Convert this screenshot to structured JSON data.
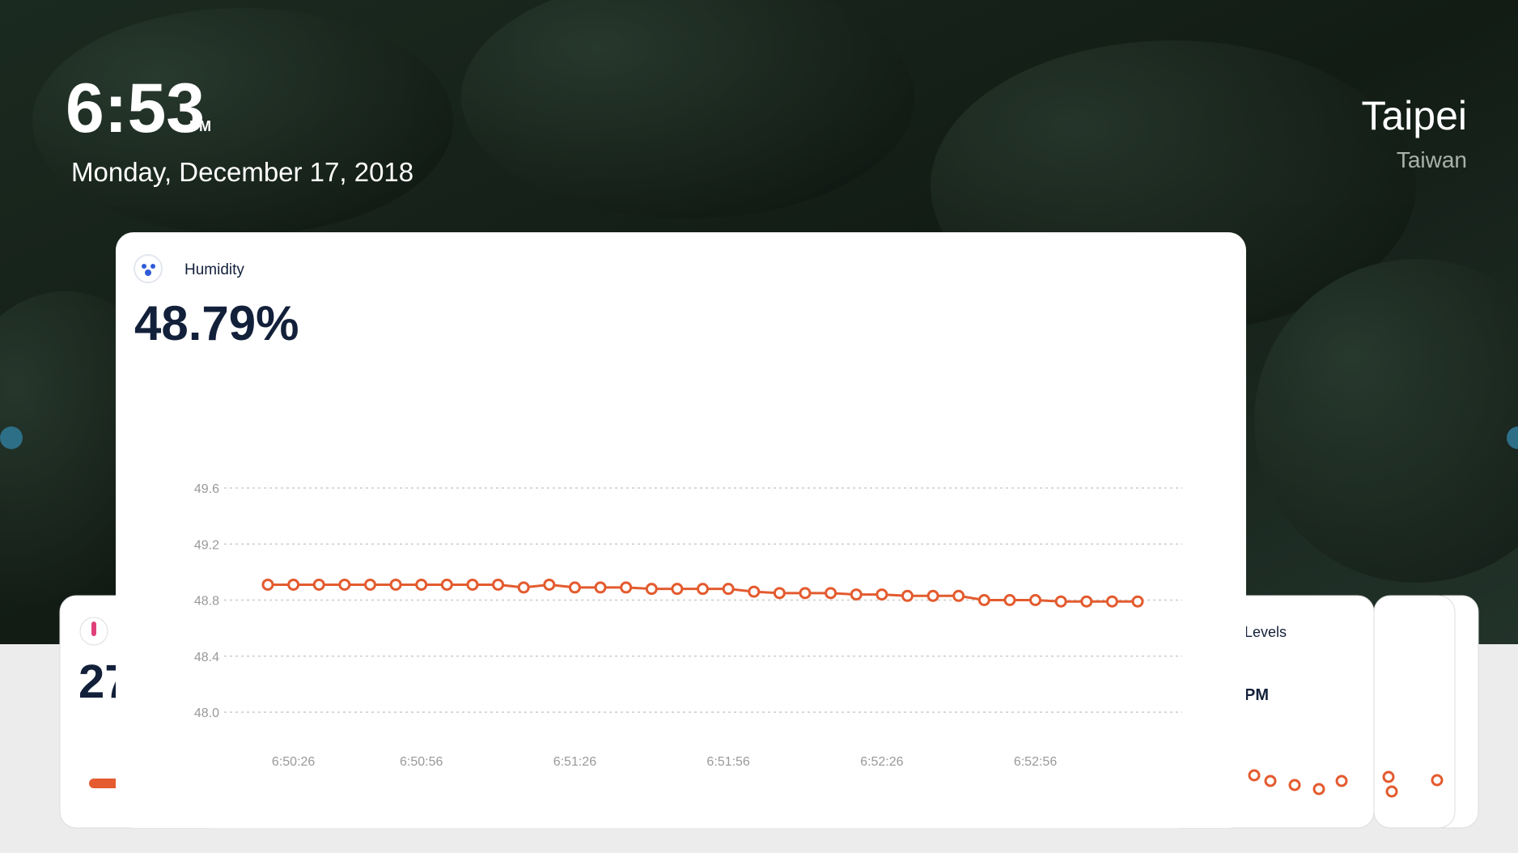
{
  "header": {
    "time": "6:53",
    "meridiem": "PM",
    "date": "Monday, December 17, 2018"
  },
  "location": {
    "city": "Taipei",
    "country": "Taiwan"
  },
  "back_cards": {
    "left_value": "27",
    "right_title": "Levels",
    "right_value": "PM"
  },
  "card": {
    "title": "Humidity",
    "value": "48.79%",
    "chart": {
      "type": "line",
      "categories": [
        null,
        "6:50:26",
        null,
        null,
        null,
        null,
        "6:50:56",
        null,
        null,
        null,
        null,
        null,
        "6:51:26",
        null,
        null,
        null,
        null,
        null,
        "6:51:56",
        null,
        null,
        null,
        null,
        null,
        "6:52:26",
        null,
        null,
        null,
        null,
        null,
        "6:52:56",
        null,
        null,
        null,
        null
      ],
      "values": [
        48.91,
        48.91,
        48.91,
        48.91,
        48.91,
        48.91,
        48.91,
        48.91,
        48.91,
        48.91,
        48.89,
        48.91,
        48.89,
        48.89,
        48.89,
        48.88,
        48.88,
        48.88,
        48.88,
        48.86,
        48.85,
        48.85,
        48.85,
        48.84,
        48.84,
        48.83,
        48.83,
        48.83,
        48.8,
        48.8,
        48.8,
        48.79,
        48.79,
        48.79,
        48.79
      ],
      "color": "#e35b2f",
      "ylim": [
        48,
        49.6
      ],
      "yticks": [
        {
          "value": 48,
          "label": "48.0"
        },
        48.4,
        48.8,
        49.2,
        49.6
      ],
      "grid": true
    }
  }
}
